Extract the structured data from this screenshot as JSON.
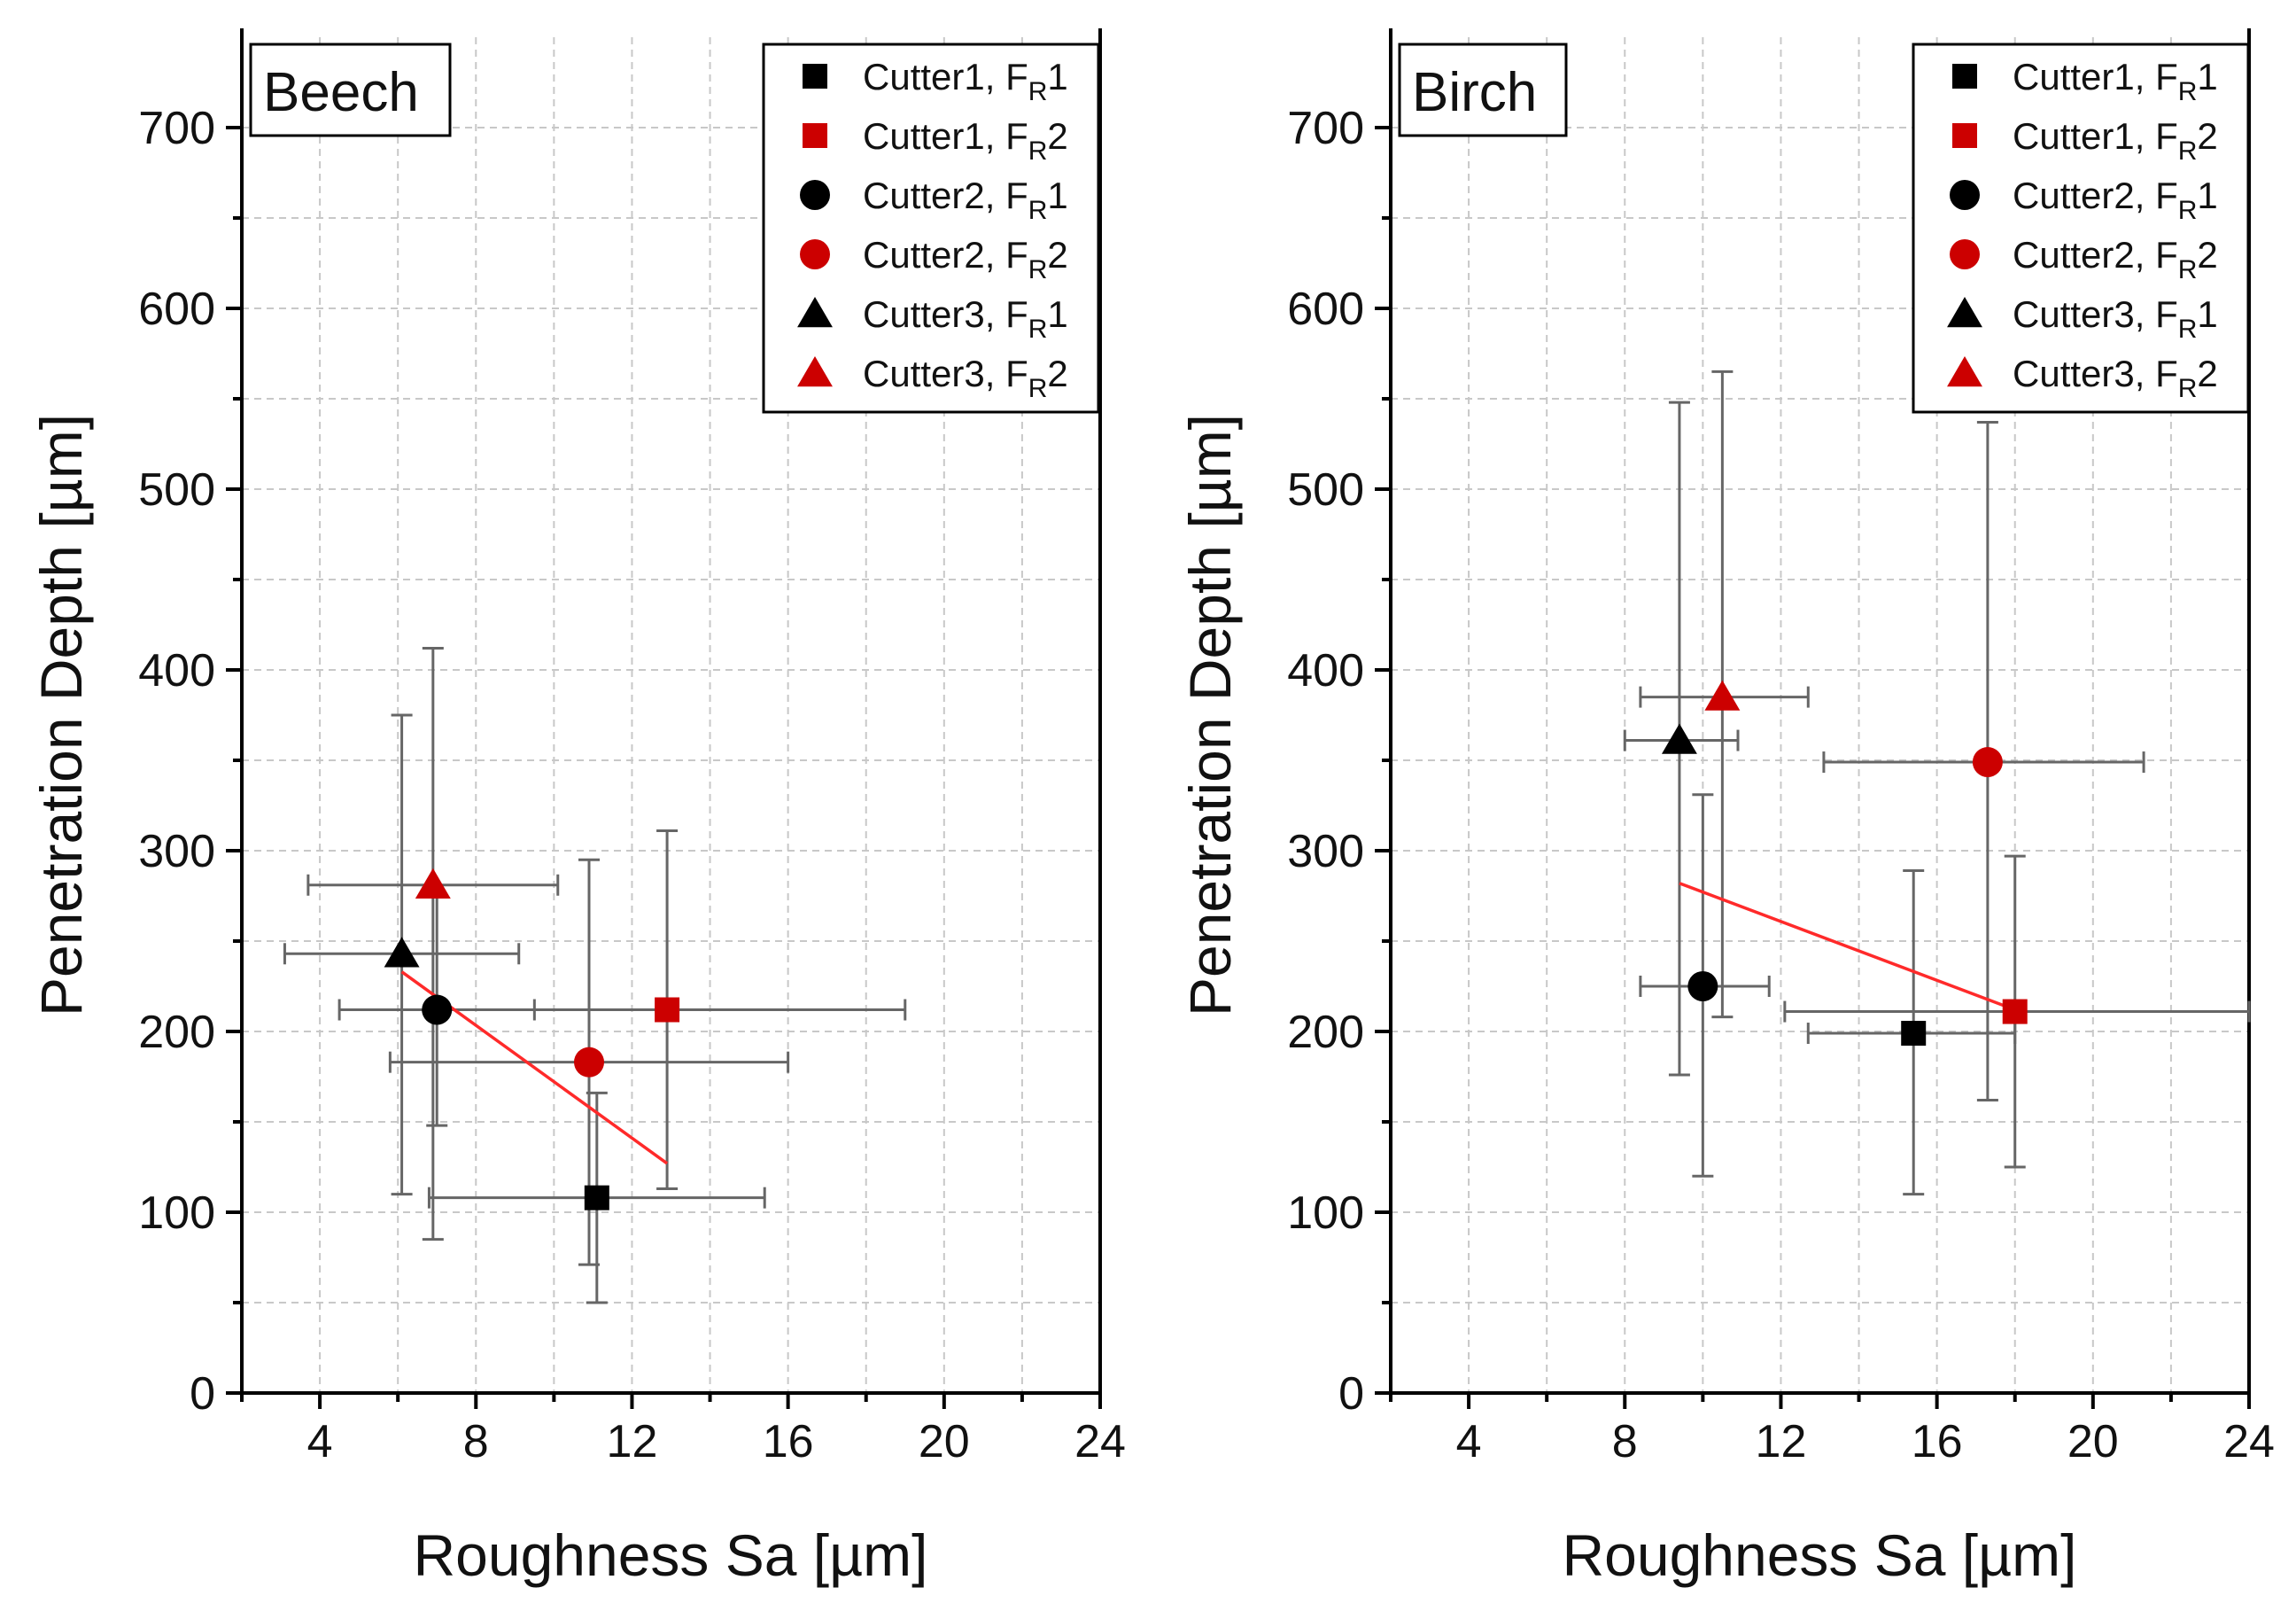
{
  "chart_data": [
    {
      "type": "scatter",
      "title": "Beech",
      "xlabel": "Roughness Sa [µm]",
      "ylabel": "Penetration Depth [µm]",
      "xlim": [
        2,
        24
      ],
      "ylim": [
        0,
        750
      ],
      "xticks": [
        "4",
        "8",
        "12",
        "16",
        "20",
        "24"
      ],
      "yticks": [
        "0",
        "100",
        "200",
        "300",
        "400",
        "500",
        "600",
        "700"
      ],
      "grid": true,
      "legend_position": "top-right",
      "colors": {
        "black": "#000000",
        "red": "#cc0000",
        "fit": "#ff2a2a",
        "error": "#666666"
      },
      "series": [
        {
          "cutter": "Cutter1",
          "sub": "R",
          "level": "1",
          "color": "black",
          "marker": "square",
          "x": 11.1,
          "y": 108,
          "xerr": [
            6.8,
            15.4
          ],
          "yerr": [
            50,
            166
          ]
        },
        {
          "cutter": "Cutter1",
          "sub": "R",
          "level": "2",
          "color": "red",
          "marker": "square",
          "x": 12.9,
          "y": 212,
          "xerr": [
            6.9,
            19.0
          ],
          "yerr": [
            113,
            311
          ]
        },
        {
          "cutter": "Cutter2",
          "sub": "R",
          "level": "1",
          "color": "black",
          "marker": "circle",
          "x": 7.0,
          "y": 212,
          "xerr": [
            4.5,
            9.5
          ],
          "yerr": [
            148,
            275
          ]
        },
        {
          "cutter": "Cutter2",
          "sub": "R",
          "level": "2",
          "color": "red",
          "marker": "circle",
          "x": 10.9,
          "y": 183,
          "xerr": [
            5.8,
            16.0
          ],
          "yerr": [
            71,
            295
          ]
        },
        {
          "cutter": "Cutter3",
          "sub": "R",
          "level": "1",
          "color": "black",
          "marker": "triangle",
          "x": 6.1,
          "y": 243,
          "xerr": [
            3.1,
            9.1
          ],
          "yerr": [
            110,
            375
          ]
        },
        {
          "cutter": "Cutter3",
          "sub": "R",
          "level": "2",
          "color": "red",
          "marker": "triangle",
          "x": 6.9,
          "y": 281,
          "xerr": [
            3.7,
            10.1
          ],
          "yerr": [
            85,
            412
          ]
        }
      ],
      "fit_line": {
        "x": [
          6.1,
          12.9
        ],
        "y": [
          233,
          127
        ]
      }
    },
    {
      "type": "scatter",
      "title": "Birch",
      "xlabel": "Roughness Sa [µm]",
      "ylabel": "Penetration Depth [µm]",
      "xlim": [
        2,
        24
      ],
      "ylim": [
        0,
        750
      ],
      "xticks": [
        "4",
        "8",
        "12",
        "16",
        "20",
        "24"
      ],
      "yticks": [
        "0",
        "100",
        "200",
        "300",
        "400",
        "500",
        "600",
        "700"
      ],
      "grid": true,
      "legend_position": "top-right",
      "colors": {
        "black": "#000000",
        "red": "#cc0000",
        "fit": "#ff2a2a",
        "error": "#666666"
      },
      "series": [
        {
          "cutter": "Cutter1",
          "sub": "R",
          "level": "1",
          "color": "black",
          "marker": "square",
          "x": 15.4,
          "y": 199,
          "xerr": [
            12.7,
            18.0
          ],
          "yerr": [
            110,
            289
          ]
        },
        {
          "cutter": "Cutter1",
          "sub": "R",
          "level": "2",
          "color": "red",
          "marker": "square",
          "x": 18.0,
          "y": 211,
          "xerr": [
            12.1,
            24.0
          ],
          "yerr": [
            125,
            297
          ]
        },
        {
          "cutter": "Cutter2",
          "sub": "R",
          "level": "1",
          "color": "black",
          "marker": "circle",
          "x": 10.0,
          "y": 225,
          "xerr": [
            8.4,
            11.7
          ],
          "yerr": [
            120,
            331
          ]
        },
        {
          "cutter": "Cutter2",
          "sub": "R",
          "level": "2",
          "color": "red",
          "marker": "circle",
          "x": 17.3,
          "y": 349,
          "xerr": [
            13.1,
            21.3
          ],
          "yerr": [
            162,
            537
          ]
        },
        {
          "cutter": "Cutter3",
          "sub": "R",
          "level": "1",
          "color": "black",
          "marker": "triangle",
          "x": 9.4,
          "y": 361,
          "xerr": [
            8.0,
            10.9
          ],
          "yerr": [
            176,
            548
          ]
        },
        {
          "cutter": "Cutter3",
          "sub": "R",
          "level": "2",
          "color": "red",
          "marker": "triangle",
          "x": 10.5,
          "y": 385,
          "xerr": [
            8.4,
            12.7
          ],
          "yerr": [
            208,
            565
          ]
        }
      ],
      "fit_line": {
        "x": [
          9.4,
          18.0
        ],
        "y": [
          282,
          212
        ]
      }
    }
  ]
}
